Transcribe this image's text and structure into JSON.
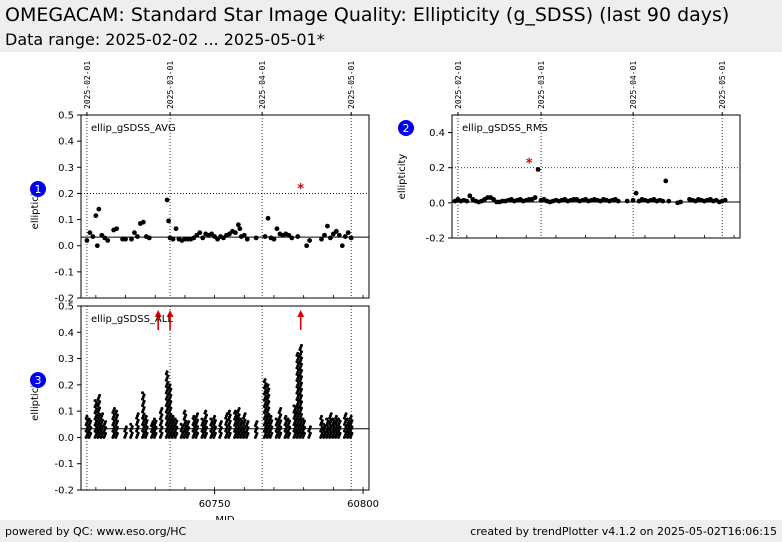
{
  "header": {
    "title": "OMEGACAM: Standard Star Image Quality: Ellipticity (g_SDSS) (last 90 days)",
    "subtitle": "Data range: 2025-02-02 ... 2025-05-01*"
  },
  "footer": {
    "left": "powered by QC: www.eso.org/HC",
    "right": "created by trendPlotter v4.1.2 on 2025-05-02T16:06:15"
  },
  "colors": {
    "points": "#000000",
    "outlier": "#e00000",
    "badge": "#0000ee"
  },
  "chart_data": [
    {
      "type": "scatter",
      "panel": "1",
      "label": "ellip_gSDSS_AVG",
      "ylabel": "ellipticity",
      "xlim": [
        60705,
        60802
      ],
      "ylim": [
        -0.2,
        0.5
      ],
      "y_ticks": [
        "-0.2",
        "-0.1",
        "0.0",
        "0.1",
        "0.2",
        "0.3",
        "0.4",
        "0.5"
      ],
      "date_ticks": [
        {
          "mjd": 60707,
          "label": "2025-02-01"
        },
        {
          "mjd": 60735,
          "label": "2025-03-01"
        },
        {
          "mjd": 60766,
          "label": "2025-04-01"
        },
        {
          "mjd": 60796,
          "label": "2025-05-01"
        }
      ],
      "reference_line": 0.033,
      "threshold_line": 0.2,
      "outliers": [
        {
          "x": 60779,
          "y": 0.22
        }
      ],
      "points": [
        [
          60707,
          0.02
        ],
        [
          60708,
          0.05
        ],
        [
          60709,
          0.035
        ],
        [
          60710,
          0.115
        ],
        [
          60710.5,
          0.0
        ],
        [
          60711,
          0.14
        ],
        [
          60712,
          0.04
        ],
        [
          60713,
          0.03
        ],
        [
          60714,
          0.02
        ],
        [
          60716,
          0.06
        ],
        [
          60717,
          0.065
        ],
        [
          60719,
          0.025
        ],
        [
          60720,
          0.025
        ],
        [
          60722,
          0.025
        ],
        [
          60723,
          0.05
        ],
        [
          60724,
          0.035
        ],
        [
          60725,
          0.085
        ],
        [
          60726,
          0.09
        ],
        [
          60727,
          0.035
        ],
        [
          60728,
          0.03
        ],
        [
          60734,
          0.175
        ],
        [
          60734.5,
          0.095
        ],
        [
          60735,
          0.03
        ],
        [
          60736,
          0.025
        ],
        [
          60737,
          0.065
        ],
        [
          60738,
          0.025
        ],
        [
          60739,
          0.02
        ],
        [
          60740,
          0.025
        ],
        [
          60741,
          0.025
        ],
        [
          60742,
          0.025
        ],
        [
          60743,
          0.03
        ],
        [
          60744,
          0.04
        ],
        [
          60745,
          0.05
        ],
        [
          60746,
          0.03
        ],
        [
          60747,
          0.045
        ],
        [
          60748,
          0.04
        ],
        [
          60749,
          0.045
        ],
        [
          60750,
          0.035
        ],
        [
          60751,
          0.025
        ],
        [
          60752,
          0.035
        ],
        [
          60753,
          0.03
        ],
        [
          60754,
          0.04
        ],
        [
          60755,
          0.045
        ],
        [
          60756,
          0.055
        ],
        [
          60757,
          0.05
        ],
        [
          60758,
          0.08
        ],
        [
          60758.5,
          0.065
        ],
        [
          60759,
          0.035
        ],
        [
          60760,
          0.04
        ],
        [
          60761,
          0.025
        ],
        [
          60764,
          0.03
        ],
        [
          60767,
          0.035
        ],
        [
          60768,
          0.105
        ],
        [
          60769,
          0.03
        ],
        [
          60770,
          0.025
        ],
        [
          60771,
          0.065
        ],
        [
          60772,
          0.045
        ],
        [
          60773,
          0.04
        ],
        [
          60774,
          0.045
        ],
        [
          60775,
          0.04
        ],
        [
          60776,
          0.03
        ],
        [
          60778,
          0.035
        ],
        [
          60781,
          0.0
        ],
        [
          60782,
          0.02
        ],
        [
          60786,
          0.025
        ],
        [
          60787,
          0.04
        ],
        [
          60788,
          0.075
        ],
        [
          60789,
          0.03
        ],
        [
          60790,
          0.045
        ],
        [
          60791,
          0.055
        ],
        [
          60792,
          0.04
        ],
        [
          60793,
          0.0
        ],
        [
          60794,
          0.035
        ],
        [
          60795,
          0.05
        ],
        [
          60796,
          0.03
        ]
      ]
    },
    {
      "type": "scatter",
      "panel": "2",
      "label": "ellip_gSDSS_RMS",
      "ylabel": "ellipticity",
      "xlim": [
        60705,
        60802
      ],
      "ylim": [
        -0.2,
        0.5
      ],
      "y_ticks": [
        "-0.2",
        "0.0",
        "0.2",
        "0.4"
      ],
      "date_ticks": [
        {
          "mjd": 60707,
          "label": "2025-02-01"
        },
        {
          "mjd": 60735,
          "label": "2025-03-01"
        },
        {
          "mjd": 60766,
          "label": "2025-04-01"
        },
        {
          "mjd": 60796,
          "label": "2025-05-01"
        }
      ],
      "reference_line": 0.005,
      "threshold_line": 0.2,
      "outliers": [
        {
          "x": 60731,
          "y": 0.23
        }
      ],
      "points": [
        [
          60706,
          0.01
        ],
        [
          60707,
          0.02
        ],
        [
          60708,
          0.01
        ],
        [
          60709,
          0.015
        ],
        [
          60710,
          0.01
        ],
        [
          60711,
          0.04
        ],
        [
          60712,
          0.02
        ],
        [
          60713,
          0.01
        ],
        [
          60714,
          0.005
        ],
        [
          60715,
          0.01
        ],
        [
          60716,
          0.02
        ],
        [
          60717,
          0.03
        ],
        [
          60718,
          0.03
        ],
        [
          60719,
          0.02
        ],
        [
          60720,
          0.005
        ],
        [
          60721,
          0.005
        ],
        [
          60722,
          0.01
        ],
        [
          60723,
          0.01
        ],
        [
          60724,
          0.015
        ],
        [
          60725,
          0.02
        ],
        [
          60726,
          0.01
        ],
        [
          60727,
          0.015
        ],
        [
          60728,
          0.02
        ],
        [
          60729,
          0.01
        ],
        [
          60730,
          0.015
        ],
        [
          60731,
          0.02
        ],
        [
          60732,
          0.02
        ],
        [
          60733,
          0.03
        ],
        [
          60734,
          0.19
        ],
        [
          60735,
          0.015
        ],
        [
          60736,
          0.02
        ],
        [
          60737,
          0.01
        ],
        [
          60738,
          0.005
        ],
        [
          60739,
          0.01
        ],
        [
          60740,
          0.015
        ],
        [
          60741,
          0.01
        ],
        [
          60742,
          0.015
        ],
        [
          60743,
          0.02
        ],
        [
          60744,
          0.01
        ],
        [
          60745,
          0.015
        ],
        [
          60746,
          0.02
        ],
        [
          60747,
          0.02
        ],
        [
          60748,
          0.01
        ],
        [
          60749,
          0.015
        ],
        [
          60750,
          0.02
        ],
        [
          60751,
          0.01
        ],
        [
          60752,
          0.015
        ],
        [
          60753,
          0.02
        ],
        [
          60754,
          0.015
        ],
        [
          60755,
          0.01
        ],
        [
          60756,
          0.02
        ],
        [
          60757,
          0.015
        ],
        [
          60758,
          0.01
        ],
        [
          60759,
          0.015
        ],
        [
          60760,
          0.02
        ],
        [
          60761,
          0.01
        ],
        [
          60764,
          0.01
        ],
        [
          60766,
          0.015
        ],
        [
          60767,
          0.055
        ],
        [
          60768,
          0.01
        ],
        [
          60769,
          0.02
        ],
        [
          60770,
          0.015
        ],
        [
          60771,
          0.01
        ],
        [
          60772,
          0.015
        ],
        [
          60773,
          0.02
        ],
        [
          60774,
          0.01
        ],
        [
          60775,
          0.015
        ],
        [
          60776,
          0.01
        ],
        [
          60777,
          0.125
        ],
        [
          60778,
          0.01
        ],
        [
          60781,
          0.0
        ],
        [
          60782,
          0.005
        ],
        [
          60785,
          0.02
        ],
        [
          60786,
          0.015
        ],
        [
          60787,
          0.01
        ],
        [
          60788,
          0.02
        ],
        [
          60789,
          0.015
        ],
        [
          60790,
          0.01
        ],
        [
          60791,
          0.015
        ],
        [
          60792,
          0.02
        ],
        [
          60793,
          0.01
        ],
        [
          60794,
          0.015
        ],
        [
          60795,
          0.005
        ],
        [
          60796,
          0.01
        ],
        [
          60797,
          0.015
        ]
      ]
    },
    {
      "type": "scatter",
      "panel": "3",
      "label": "ellip_gSDSS_ALL",
      "ylabel": "ellipticity",
      "xlabel": "MJD",
      "xlim": [
        60705,
        60802
      ],
      "ylim": [
        -0.2,
        0.5
      ],
      "x_ticks": [
        {
          "mjd": 60750,
          "label": "60750"
        },
        {
          "mjd": 60800,
          "label": "60800"
        }
      ],
      "y_ticks": [
        "-0.2",
        "-0.1",
        "0.0",
        "0.1",
        "0.2",
        "0.3",
        "0.4",
        "0.5"
      ],
      "date_ticks": [
        {
          "mjd": 60707,
          "label": "2025-02-01"
        },
        {
          "mjd": 60735,
          "label": "2025-03-01"
        },
        {
          "mjd": 60766,
          "label": "2025-04-01"
        },
        {
          "mjd": 60796,
          "label": "2025-05-01"
        }
      ],
      "reference_line": 0.033,
      "off_scale_arrows": [
        60731,
        60735,
        60779
      ],
      "column_groups": [
        {
          "x": 60707,
          "max": 0.08
        },
        {
          "x": 60708,
          "max": 0.07
        },
        {
          "x": 60710,
          "max": 0.14
        },
        {
          "x": 60711,
          "max": 0.16
        },
        {
          "x": 60712,
          "max": 0.09
        },
        {
          "x": 60713,
          "max": 0.06
        },
        {
          "x": 60716,
          "max": 0.11
        },
        {
          "x": 60717,
          "max": 0.1
        },
        {
          "x": 60720,
          "max": 0.04
        },
        {
          "x": 60722,
          "max": 0.05
        },
        {
          "x": 60724,
          "max": 0.09
        },
        {
          "x": 60726,
          "max": 0.17
        },
        {
          "x": 60727,
          "max": 0.08
        },
        {
          "x": 60729,
          "max": 0.06
        },
        {
          "x": 60730,
          "max": 0.07
        },
        {
          "x": 60732,
          "max": 0.11
        },
        {
          "x": 60734,
          "max": 0.25
        },
        {
          "x": 60735,
          "max": 0.2
        },
        {
          "x": 60736,
          "max": 0.08
        },
        {
          "x": 60737,
          "max": 0.07
        },
        {
          "x": 60739,
          "max": 0.05
        },
        {
          "x": 60740,
          "max": 0.1
        },
        {
          "x": 60741,
          "max": 0.06
        },
        {
          "x": 60743,
          "max": 0.08
        },
        {
          "x": 60744,
          "max": 0.09
        },
        {
          "x": 60746,
          "max": 0.07
        },
        {
          "x": 60747,
          "max": 0.1
        },
        {
          "x": 60749,
          "max": 0.07
        },
        {
          "x": 60750,
          "max": 0.08
        },
        {
          "x": 60752,
          "max": 0.06
        },
        {
          "x": 60754,
          "max": 0.09
        },
        {
          "x": 60755,
          "max": 0.1
        },
        {
          "x": 60757,
          "max": 0.1
        },
        {
          "x": 60758,
          "max": 0.11
        },
        {
          "x": 60759,
          "max": 0.07
        },
        {
          "x": 60760,
          "max": 0.09
        },
        {
          "x": 60761,
          "max": 0.06
        },
        {
          "x": 60764,
          "max": 0.06
        },
        {
          "x": 60767,
          "max": 0.22
        },
        {
          "x": 60768,
          "max": 0.2
        },
        {
          "x": 60769,
          "max": 0.08
        },
        {
          "x": 60771,
          "max": 0.07
        },
        {
          "x": 60772,
          "max": 0.11
        },
        {
          "x": 60774,
          "max": 0.08
        },
        {
          "x": 60775,
          "max": 0.07
        },
        {
          "x": 60777,
          "max": 0.12
        },
        {
          "x": 60778,
          "max": 0.32
        },
        {
          "x": 60779,
          "max": 0.35
        },
        {
          "x": 60780,
          "max": 0.07
        },
        {
          "x": 60782,
          "max": 0.04
        },
        {
          "x": 60786,
          "max": 0.08
        },
        {
          "x": 60787,
          "max": 0.05
        },
        {
          "x": 60788,
          "max": 0.07
        },
        {
          "x": 60789,
          "max": 0.09
        },
        {
          "x": 60790,
          "max": 0.07
        },
        {
          "x": 60791,
          "max": 0.08
        },
        {
          "x": 60792,
          "max": 0.07
        },
        {
          "x": 60794,
          "max": 0.09
        },
        {
          "x": 60795,
          "max": 0.07
        },
        {
          "x": 60796,
          "max": 0.08
        }
      ]
    }
  ]
}
